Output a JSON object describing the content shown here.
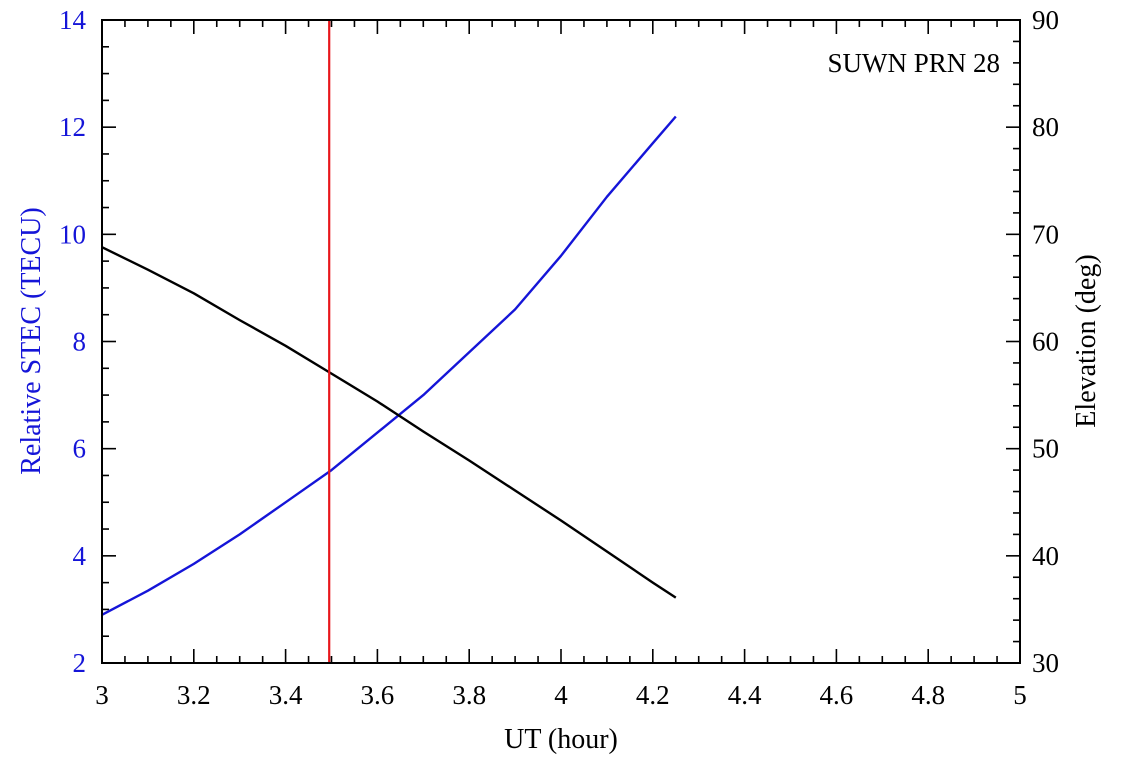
{
  "chart_data": {
    "type": "line",
    "annotation": "SUWN PRN 28",
    "xlabel": "UT (hour)",
    "ylabel_left": "Relative STEC (TECU)",
    "ylabel_right": "Elevation (deg)",
    "xlim": [
      3,
      5
    ],
    "ylim_left": [
      2,
      14
    ],
    "ylim_right": [
      30,
      90
    ],
    "x_ticks": [
      "3",
      "3.2",
      "3.4",
      "3.6",
      "3.8",
      "4",
      "4.2",
      "4.4",
      "4.6",
      "4.8",
      "5"
    ],
    "y_left_ticks": [
      "2",
      "4",
      "6",
      "8",
      "10",
      "12",
      "14"
    ],
    "y_right_ticks": [
      "30",
      "40",
      "50",
      "60",
      "70",
      "80",
      "90"
    ],
    "grid": false,
    "vertical_line": {
      "x": 3.495,
      "color": "#e8161b"
    },
    "series": [
      {
        "axis": "left",
        "color": "#1515d8",
        "x": [
          3.0,
          3.1,
          3.2,
          3.3,
          3.4,
          3.5,
          3.6,
          3.7,
          3.8,
          3.9,
          4.0,
          4.1,
          4.2,
          4.25
        ],
        "y": [
          2.9,
          3.35,
          3.85,
          4.4,
          5.0,
          5.6,
          6.3,
          7.0,
          7.8,
          8.6,
          9.6,
          10.7,
          11.7,
          12.2
        ]
      },
      {
        "axis": "right",
        "color": "#000000",
        "x": [
          3.0,
          3.1,
          3.2,
          3.3,
          3.4,
          3.5,
          3.6,
          3.7,
          3.8,
          3.9,
          4.0,
          4.1,
          4.2,
          4.25
        ],
        "y": [
          68.8,
          66.7,
          64.5,
          62.0,
          59.6,
          57.0,
          54.4,
          51.6,
          48.9,
          46.1,
          43.3,
          40.4,
          37.5,
          36.1
        ]
      }
    ],
    "left_axis_color": "#1515d8",
    "right_axis_color": "#000000"
  }
}
